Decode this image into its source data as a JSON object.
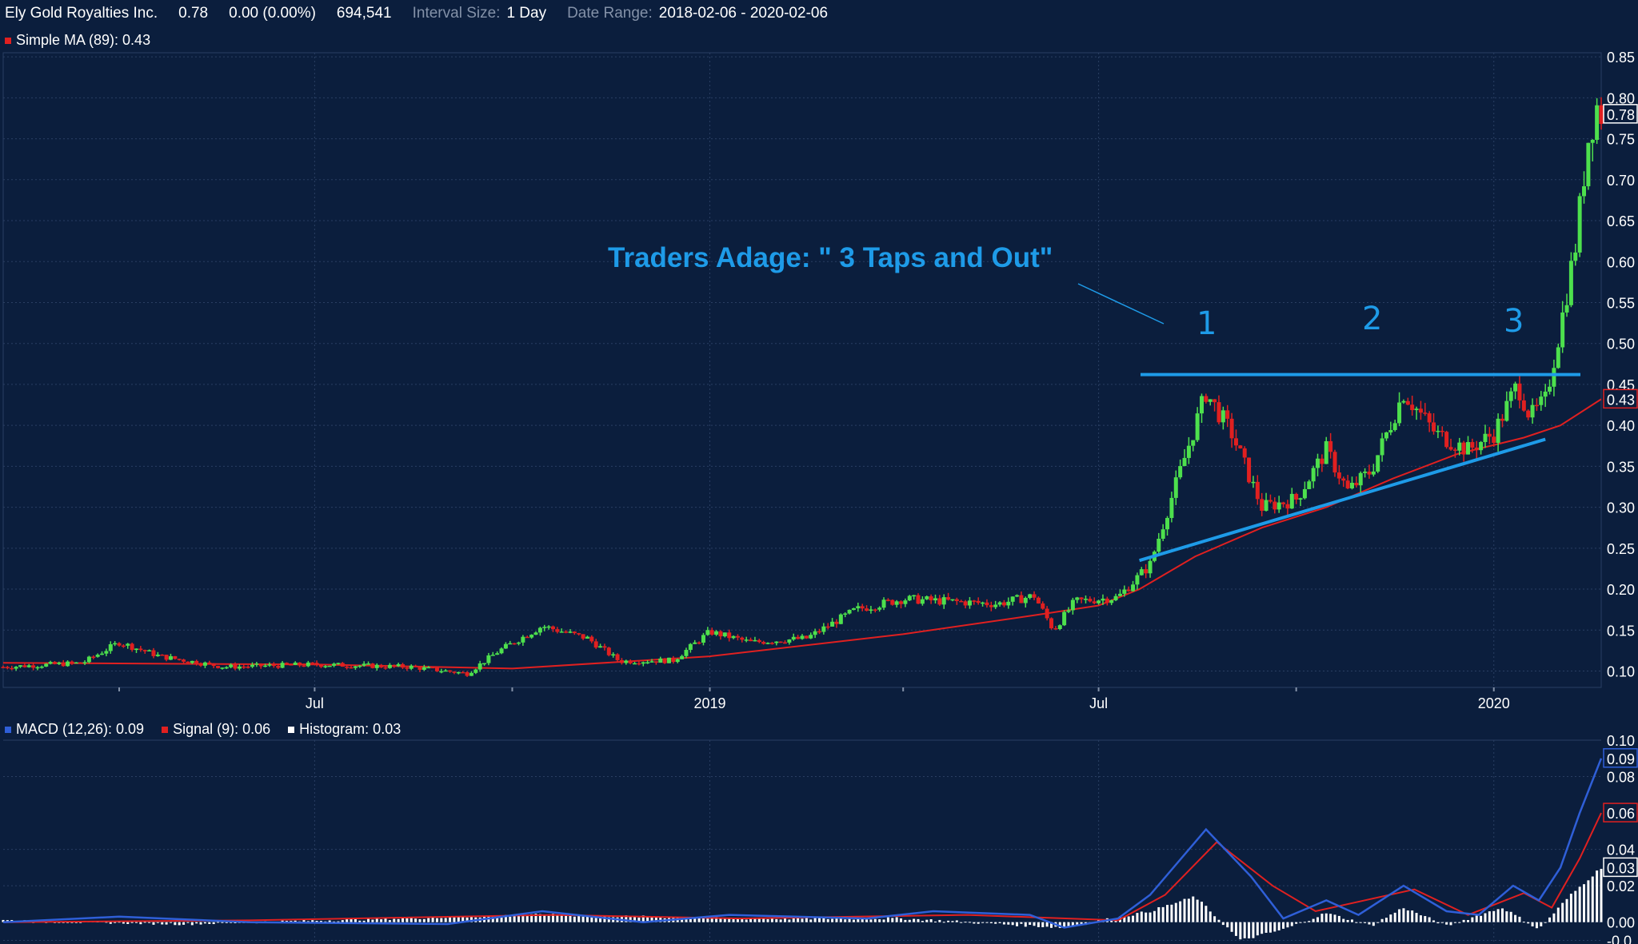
{
  "header": {
    "symbol": "Ely Gold Royalties Inc.",
    "last": "0.78",
    "change": "0.00 (0.00%)",
    "volume": "694,541",
    "interval_label": "Interval Size:",
    "interval_value": "1 Day",
    "range_label": "Date Range:",
    "range_value": "2018-02-06 - 2020-02-06"
  },
  "ma_legend": {
    "label": "Simple MA (89): 0.43",
    "color": "#e02020"
  },
  "macd_legend": {
    "macd": "MACD (12,26): 0.09",
    "macd_color": "#2f5fd8",
    "signal": "Signal (9): 0.06",
    "signal_color": "#e02020",
    "hist": "Histogram: 0.03",
    "hist_color": "#ffffff"
  },
  "colors": {
    "background": "#0b1e3d",
    "up": "#4de04d",
    "down": "#e02020",
    "annotation": "#1e9be8",
    "grid": "#2a3f63"
  },
  "annotations": {
    "title": "Traders Adage:  \" 3 Taps and Out\"",
    "tap1": "1",
    "tap2": "2",
    "tap3": "3",
    "resistance": 0.462,
    "support_from": {
      "date": "2019-07-20",
      "value": 0.235
    },
    "support_to": {
      "date": "2020-01-25",
      "value": 0.383
    }
  },
  "chart_data": [
    {
      "type": "candlestick",
      "x_range": [
        "2018-02-06",
        "2020-02-20"
      ],
      "ylim": [
        0.08,
        0.855
      ],
      "yticks": [
        "0.10",
        "0.15",
        "0.20",
        "0.25",
        "0.30",
        "0.35",
        "0.40",
        "0.45",
        "0.50",
        "0.55",
        "0.60",
        "0.65",
        "0.70",
        "0.75",
        "0.80",
        "0.85"
      ],
      "xticks": [
        {
          "date": "2018-04-01",
          "label": ""
        },
        {
          "date": "2018-07-01",
          "label": "Jul"
        },
        {
          "date": "2018-10-01",
          "label": ""
        },
        {
          "date": "2019-01-01",
          "label": "2019"
        },
        {
          "date": "2019-04-01",
          "label": ""
        },
        {
          "date": "2019-07-01",
          "label": "Jul"
        },
        {
          "date": "2019-10-01",
          "label": ""
        },
        {
          "date": "2020-01-01",
          "label": "2020"
        }
      ],
      "last_price_label": "0.78",
      "last_price": 0.78,
      "ma_label": "0.43",
      "ma_value": 0.432,
      "price_path": [
        [
          "2018-02-06",
          0.105
        ],
        [
          "2018-03-15",
          0.11
        ],
        [
          "2018-04-01",
          0.135
        ],
        [
          "2018-04-20",
          0.118
        ],
        [
          "2018-05-20",
          0.105
        ],
        [
          "2018-07-01",
          0.108
        ],
        [
          "2018-08-15",
          0.105
        ],
        [
          "2018-09-10",
          0.097
        ],
        [
          "2018-09-25",
          0.125
        ],
        [
          "2018-10-15",
          0.155
        ],
        [
          "2018-11-05",
          0.14
        ],
        [
          "2018-11-20",
          0.112
        ],
        [
          "2018-12-15",
          0.113
        ],
        [
          "2019-01-01",
          0.148
        ],
        [
          "2019-01-20",
          0.135
        ],
        [
          "2019-02-15",
          0.14
        ],
        [
          "2019-03-10",
          0.175
        ],
        [
          "2019-04-01",
          0.188
        ],
        [
          "2019-05-15",
          0.182
        ],
        [
          "2019-06-01",
          0.192
        ],
        [
          "2019-06-10",
          0.15
        ],
        [
          "2019-06-20",
          0.185
        ],
        [
          "2019-07-10",
          0.19
        ],
        [
          "2019-07-25",
          0.23
        ],
        [
          "2019-08-05",
          0.32
        ],
        [
          "2019-08-20",
          0.44
        ],
        [
          "2019-09-01",
          0.39
        ],
        [
          "2019-09-15",
          0.3
        ],
        [
          "2019-10-01",
          0.31
        ],
        [
          "2019-10-15",
          0.37
        ],
        [
          "2019-10-25",
          0.32
        ],
        [
          "2019-11-05",
          0.345
        ],
        [
          "2019-11-20",
          0.44
        ],
        [
          "2019-12-05",
          0.39
        ],
        [
          "2019-12-20",
          0.37
        ],
        [
          "2020-01-01",
          0.39
        ],
        [
          "2020-01-12",
          0.45
        ],
        [
          "2020-01-18",
          0.41
        ],
        [
          "2020-01-25",
          0.43
        ],
        [
          "2020-02-01",
          0.52
        ],
        [
          "2020-02-08",
          0.62
        ],
        [
          "2020-02-14",
          0.75
        ],
        [
          "2020-02-18",
          0.79
        ],
        [
          "2020-02-20",
          0.78
        ]
      ],
      "ma": [
        [
          "2018-02-06",
          0.11
        ],
        [
          "2018-07-01",
          0.108
        ],
        [
          "2018-10-01",
          0.103
        ],
        [
          "2019-01-01",
          0.118
        ],
        [
          "2019-04-01",
          0.145
        ],
        [
          "2019-06-01",
          0.168
        ],
        [
          "2019-07-01",
          0.18
        ],
        [
          "2019-07-20",
          0.2
        ],
        [
          "2019-08-15",
          0.24
        ],
        [
          "2019-09-15",
          0.275
        ],
        [
          "2019-10-15",
          0.3
        ],
        [
          "2019-11-15",
          0.335
        ],
        [
          "2019-12-15",
          0.365
        ],
        [
          "2020-01-15",
          0.385
        ],
        [
          "2020-02-01",
          0.4
        ],
        [
          "2020-02-20",
          0.432
        ]
      ]
    },
    {
      "type": "line",
      "title": "MACD",
      "ylim": [
        -0.012,
        0.1
      ],
      "yticks": [
        "0.10",
        "0.08",
        "0.04",
        "0.02",
        "0.00",
        "-0.0"
      ],
      "macd_label": "0.09",
      "macd_value": 0.09,
      "signal_label": "0.06",
      "signal_value": 0.06,
      "hist_label": "0.03",
      "hist_value": 0.03,
      "macd": [
        [
          "2018-02-06",
          0.0
        ],
        [
          "2018-04-01",
          0.003
        ],
        [
          "2018-06-01",
          0.0
        ],
        [
          "2018-09-01",
          -0.001
        ],
        [
          "2018-10-15",
          0.006
        ],
        [
          "2018-12-01",
          0.0
        ],
        [
          "2019-01-10",
          0.004
        ],
        [
          "2019-03-15",
          0.002
        ],
        [
          "2019-04-15",
          0.006
        ],
        [
          "2019-05-30",
          0.004
        ],
        [
          "2019-06-15",
          -0.003
        ],
        [
          "2019-07-10",
          0.002
        ],
        [
          "2019-07-25",
          0.015
        ],
        [
          "2019-08-20",
          0.051
        ],
        [
          "2019-09-10",
          0.025
        ],
        [
          "2019-09-25",
          0.002
        ],
        [
          "2019-10-15",
          0.012
        ],
        [
          "2019-10-30",
          0.004
        ],
        [
          "2019-11-20",
          0.02
        ],
        [
          "2019-12-10",
          0.006
        ],
        [
          "2019-12-25",
          0.004
        ],
        [
          "2020-01-10",
          0.02
        ],
        [
          "2020-01-22",
          0.012
        ],
        [
          "2020-02-01",
          0.03
        ],
        [
          "2020-02-10",
          0.06
        ],
        [
          "2020-02-20",
          0.09
        ]
      ],
      "signal": [
        [
          "2018-02-06",
          0.0
        ],
        [
          "2018-06-01",
          0.001
        ],
        [
          "2018-10-20",
          0.004
        ],
        [
          "2019-01-15",
          0.002
        ],
        [
          "2019-05-01",
          0.004
        ],
        [
          "2019-07-10",
          0.001
        ],
        [
          "2019-08-01",
          0.015
        ],
        [
          "2019-08-25",
          0.044
        ],
        [
          "2019-09-20",
          0.02
        ],
        [
          "2019-10-10",
          0.006
        ],
        [
          "2019-11-25",
          0.018
        ],
        [
          "2019-12-20",
          0.004
        ],
        [
          "2020-01-15",
          0.016
        ],
        [
          "2020-01-28",
          0.008
        ],
        [
          "2020-02-10",
          0.035
        ],
        [
          "2020-02-20",
          0.06
        ]
      ],
      "histogram": [
        [
          "2018-02-06",
          0.001
        ],
        [
          "2018-05-01",
          -0.001
        ],
        [
          "2018-10-15",
          0.004
        ],
        [
          "2019-01-10",
          0.002
        ],
        [
          "2019-04-01",
          0.002
        ],
        [
          "2019-06-15",
          -0.003
        ],
        [
          "2019-07-25",
          0.006
        ],
        [
          "2019-08-15",
          0.014
        ],
        [
          "2019-09-05",
          -0.01
        ],
        [
          "2019-09-25",
          -0.004
        ],
        [
          "2019-10-15",
          0.005
        ],
        [
          "2019-11-05",
          -0.002
        ],
        [
          "2019-11-20",
          0.008
        ],
        [
          "2019-12-10",
          -0.002
        ],
        [
          "2020-01-05",
          0.008
        ],
        [
          "2020-01-22",
          -0.004
        ],
        [
          "2020-02-05",
          0.014
        ],
        [
          "2020-02-20",
          0.03
        ]
      ]
    }
  ]
}
